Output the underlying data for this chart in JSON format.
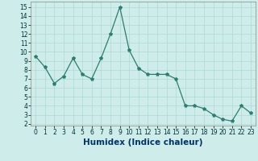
{
  "x": [
    0,
    1,
    2,
    3,
    4,
    5,
    6,
    7,
    8,
    9,
    10,
    11,
    12,
    13,
    14,
    15,
    16,
    17,
    18,
    19,
    20,
    21,
    22,
    23
  ],
  "y": [
    9.5,
    8.3,
    6.5,
    7.3,
    9.3,
    7.5,
    7.0,
    9.3,
    12.0,
    15.0,
    10.2,
    8.2,
    7.5,
    7.5,
    7.5,
    7.0,
    4.0,
    4.0,
    3.7,
    3.0,
    2.5,
    2.3,
    4.0,
    3.2
  ],
  "line_color": "#2e7d6e",
  "marker": "*",
  "bg_color": "#cdecea",
  "grid_color": "#b0d8d4",
  "xlabel": "Humidex (Indice chaleur)",
  "xlim": [
    -0.5,
    23.5
  ],
  "ylim": [
    1.8,
    15.6
  ],
  "yticks": [
    2,
    3,
    4,
    5,
    6,
    7,
    8,
    9,
    10,
    11,
    12,
    13,
    14,
    15
  ],
  "xticks": [
    0,
    1,
    2,
    3,
    4,
    5,
    6,
    7,
    8,
    9,
    10,
    11,
    12,
    13,
    14,
    15,
    16,
    17,
    18,
    19,
    20,
    21,
    22,
    23
  ],
  "tick_fontsize": 5.5,
  "xlabel_fontsize": 7.5,
  "xlabel_color": "#003366",
  "line_width": 0.9,
  "marker_size": 3.0
}
